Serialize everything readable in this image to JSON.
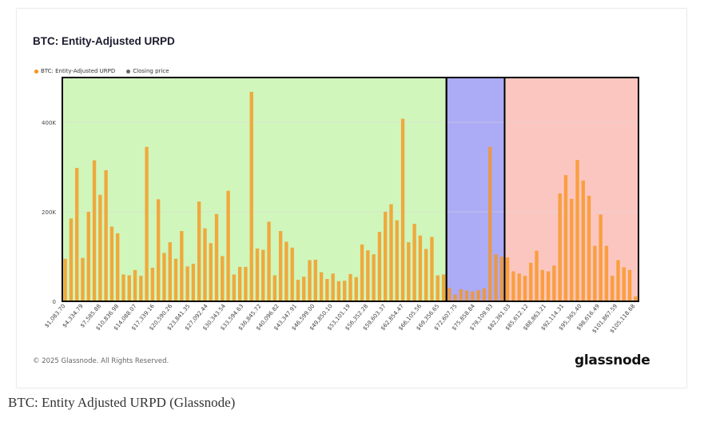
{
  "caption": "BTC: Entity Adjusted URPD (Glassnode)",
  "card": {
    "title": "BTC: Entity-Adjusted URPD",
    "copyright": "© 2025 Glassnode. All Rights Reserved.",
    "brand": "glassnode"
  },
  "legend": [
    {
      "label": "BTC: Entity-Adjusted URPD",
      "color": "#f7931a"
    },
    {
      "label": "Closing price",
      "color": "#666666"
    }
  ],
  "colors": {
    "bar": "#f7931a",
    "zone_green": "#c8f5b0",
    "zone_blue": "#9e9cf5",
    "zone_red": "#fbbcb5",
    "zone_border": "#000000"
  },
  "chart_data": {
    "type": "bar",
    "ylim": [
      0,
      500000
    ],
    "yticks": [
      {
        "value": 0,
        "label": "0"
      },
      {
        "value": 200000,
        "label": "200K"
      },
      {
        "value": 400000,
        "label": "400K"
      }
    ],
    "x_tick_labels": [
      "$1,083.70",
      "$4,334.79",
      "$7,585.88",
      "$10,836.98",
      "$14,088.07",
      "$17,339.16",
      "$20,590.26",
      "$23,841.35",
      "$27,092.44",
      "$30,343.54",
      "$33,594.63",
      "$36,845.72",
      "$40,096.82",
      "$43,347.91",
      "$46,599.00",
      "$49,850.10",
      "$53,101.19",
      "$56,352.28",
      "$59,603.37",
      "$62,854.47",
      "$66,105.56",
      "$69,356.65",
      "$72,607.75",
      "$75,858.84",
      "$79,109.93",
      "$82,361.03",
      "$85,612.12",
      "$88,863.21",
      "$92,114.31",
      "$95,365.40",
      "$98,616.49",
      "$101,867.59",
      "$105,118.68"
    ],
    "values": [
      95000,
      185000,
      298000,
      97000,
      200000,
      315000,
      238000,
      293000,
      167000,
      152000,
      60000,
      58000,
      70000,
      57000,
      345000,
      75000,
      228000,
      108000,
      132000,
      95000,
      157000,
      78000,
      84000,
      223000,
      163000,
      130000,
      195000,
      101000,
      247000,
      60000,
      77000,
      77000,
      468000,
      118000,
      115000,
      178000,
      58000,
      157000,
      133000,
      120000,
      48000,
      55000,
      92000,
      93000,
      65000,
      50000,
      62000,
      45000,
      46000,
      61000,
      54000,
      127000,
      114000,
      105000,
      155000,
      200000,
      217000,
      181000,
      408000,
      132000,
      173000,
      147000,
      117000,
      144000,
      58000,
      60000,
      30000,
      15000,
      27000,
      24000,
      22000,
      25000,
      29000,
      345000,
      105000,
      100000,
      98000,
      67000,
      62000,
      57000,
      86000,
      113000,
      70000,
      67000,
      80000,
      241000,
      282000,
      229000,
      316000,
      270000,
      236000,
      124000,
      194000,
      124000,
      57000,
      92000,
      76000,
      70000,
      11000
    ],
    "zones": [
      {
        "label": "green",
        "start_index": 0,
        "end_index": 65
      },
      {
        "label": "blue",
        "start_index": 66,
        "end_index": 75
      },
      {
        "label": "red",
        "start_index": 76,
        "end_index": 98
      }
    ]
  }
}
